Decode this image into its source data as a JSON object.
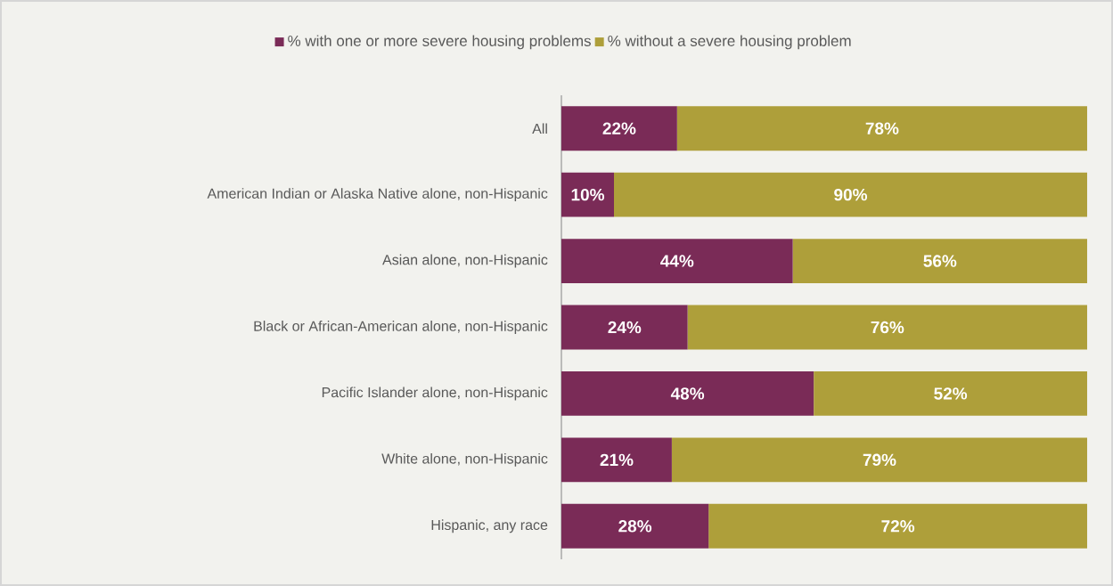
{
  "chart_data": {
    "type": "bar",
    "orientation": "horizontal",
    "stacked": true,
    "categories": [
      "All",
      "American Indian or Alaska Native alone, non-Hispanic",
      "Asian alone, non-Hispanic",
      "Black or African-American alone, non-Hispanic",
      "Pacific Islander alone, non-Hispanic",
      "White alone, non-Hispanic",
      "Hispanic, any race"
    ],
    "series": [
      {
        "name": "% with one or more severe housing problems",
        "color": "#7a2b57",
        "values": [
          22,
          10,
          44,
          24,
          48,
          21,
          28
        ],
        "value_labels": [
          "22%",
          "10%",
          "44%",
          "24%",
          "48%",
          "21%",
          "28%"
        ]
      },
      {
        "name": "% without a severe housing problem",
        "color": "#ae9f3a",
        "values": [
          78,
          90,
          56,
          76,
          52,
          79,
          72
        ],
        "value_labels": [
          "78%",
          "90%",
          "56%",
          "76%",
          "52%",
          "79%",
          "72%"
        ]
      }
    ],
    "tick_labels": "y",
    "legend": "top",
    "grid": false
  }
}
